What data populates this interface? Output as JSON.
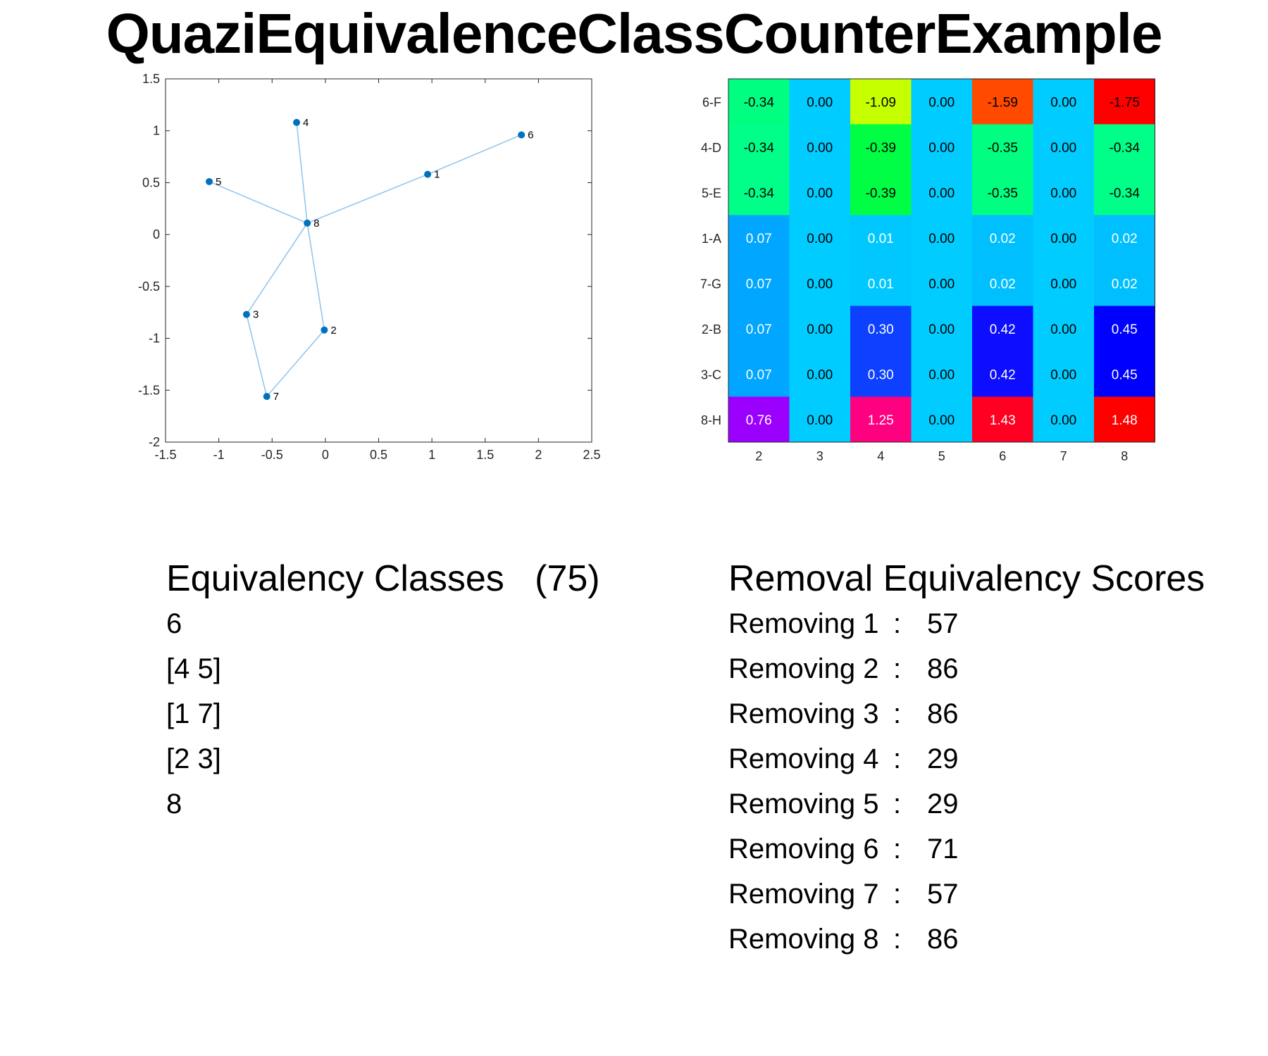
{
  "title": "QuaziEquivalenceClassCounterExample",
  "chart_data": [
    {
      "type": "scatter",
      "title": "",
      "xlabel": "",
      "ylabel": "",
      "xlim": [
        -1.5,
        2.5
      ],
      "ylim": [
        -2,
        1.5
      ],
      "xticks": [
        "-1.5",
        "-1",
        "-0.5",
        "0",
        "0.5",
        "1",
        "1.5",
        "2",
        "2.5"
      ],
      "xtick_values": [
        -1.5,
        -1,
        -0.5,
        0,
        0.5,
        1,
        1.5,
        2,
        2.5
      ],
      "yticks": [
        "1.5",
        "1",
        "0.5",
        "0",
        "-0.5",
        "-1",
        "-1.5",
        "-2"
      ],
      "ytick_values": [
        1.5,
        1,
        0.5,
        0,
        -0.5,
        -1,
        -1.5,
        -2
      ],
      "grid": false,
      "point_color": "#0072bd",
      "edge_color": "#8fc3ea",
      "points": [
        {
          "label": "1",
          "x": 0.96,
          "y": 0.58
        },
        {
          "label": "2",
          "x": -0.01,
          "y": -0.92
        },
        {
          "label": "3",
          "x": -0.74,
          "y": -0.77
        },
        {
          "label": "4",
          "x": -0.27,
          "y": 1.08
        },
        {
          "label": "5",
          "x": -1.09,
          "y": 0.51
        },
        {
          "label": "6",
          "x": 1.84,
          "y": 0.96
        },
        {
          "label": "7",
          "x": -0.55,
          "y": -1.56
        },
        {
          "label": "8",
          "x": -0.17,
          "y": 0.11
        }
      ],
      "edges": [
        [
          "1",
          "6"
        ],
        [
          "1",
          "8"
        ],
        [
          "4",
          "8"
        ],
        [
          "5",
          "8"
        ],
        [
          "8",
          "2"
        ],
        [
          "8",
          "3"
        ],
        [
          "3",
          "7"
        ],
        [
          "7",
          "2"
        ]
      ]
    },
    {
      "type": "heatmap",
      "title": "",
      "xlabel": "",
      "ylabel": "",
      "x_labels": [
        "2",
        "3",
        "4",
        "5",
        "6",
        "7",
        "8"
      ],
      "y_labels": [
        "6-F",
        "4-D",
        "5-E",
        "1-A",
        "7-G",
        "2-B",
        "3-C",
        "8-H"
      ],
      "values": [
        [
          "-0.34",
          "0.00",
          "-1.09",
          "0.00",
          "-1.59",
          "0.00",
          "-1.75"
        ],
        [
          "-0.34",
          "0.00",
          "-0.39",
          "0.00",
          "-0.35",
          "0.00",
          "-0.34"
        ],
        [
          "-0.34",
          "0.00",
          "-0.39",
          "0.00",
          "-0.35",
          "0.00",
          "-0.34"
        ],
        [
          "0.07",
          "0.00",
          "0.01",
          "0.00",
          "0.02",
          "0.00",
          "0.02"
        ],
        [
          "0.07",
          "0.00",
          "0.01",
          "0.00",
          "0.02",
          "0.00",
          "0.02"
        ],
        [
          "0.07",
          "0.00",
          "0.30",
          "0.00",
          "0.42",
          "0.00",
          "0.45"
        ],
        [
          "0.07",
          "0.00",
          "0.30",
          "0.00",
          "0.42",
          "0.00",
          "0.45"
        ],
        [
          "0.76",
          "0.00",
          "1.25",
          "0.00",
          "1.43",
          "0.00",
          "1.48"
        ]
      ],
      "colors": [
        [
          "#00ff80",
          "#00ccff",
          "#c6ff00",
          "#00ccff",
          "#ff4a00",
          "#00ccff",
          "#ff0000"
        ],
        [
          "#00ff88",
          "#00ccff",
          "#00ff44",
          "#00ccff",
          "#00ff80",
          "#00ccff",
          "#00ff88"
        ],
        [
          "#00ff88",
          "#00ccff",
          "#00ff44",
          "#00ccff",
          "#00ff80",
          "#00ccff",
          "#00ff88"
        ],
        [
          "#00a6ff",
          "#00ccff",
          "#00c8ff",
          "#00ccff",
          "#00bfff",
          "#00ccff",
          "#00bfff"
        ],
        [
          "#00a6ff",
          "#00ccff",
          "#00c8ff",
          "#00ccff",
          "#00bfff",
          "#00ccff",
          "#00bfff"
        ],
        [
          "#00a6ff",
          "#00ccff",
          "#0d40ff",
          "#00ccff",
          "#0d0dff",
          "#00ccff",
          "#0000ff"
        ],
        [
          "#00a6ff",
          "#00ccff",
          "#0d40ff",
          "#00ccff",
          "#0d0dff",
          "#00ccff",
          "#0000ff"
        ],
        [
          "#9b00ff",
          "#00ccff",
          "#ff0080",
          "#00ccff",
          "#ff0022",
          "#00ccff",
          "#ff0000"
        ]
      ],
      "text_colors": [
        [
          "#000000",
          "#000000",
          "#000000",
          "#000000",
          "#000000",
          "#000000",
          "#000000"
        ],
        [
          "#000000",
          "#000000",
          "#000000",
          "#000000",
          "#000000",
          "#000000",
          "#000000"
        ],
        [
          "#000000",
          "#000000",
          "#000000",
          "#000000",
          "#000000",
          "#000000",
          "#000000"
        ],
        [
          "#ffffff",
          "#000000",
          "#ffffff",
          "#000000",
          "#ffffff",
          "#000000",
          "#ffffff"
        ],
        [
          "#ffffff",
          "#000000",
          "#ffffff",
          "#000000",
          "#ffffff",
          "#000000",
          "#ffffff"
        ],
        [
          "#ffffff",
          "#000000",
          "#ffffff",
          "#000000",
          "#ffffff",
          "#000000",
          "#ffffff"
        ],
        [
          "#ffffff",
          "#000000",
          "#ffffff",
          "#000000",
          "#ffffff",
          "#000000",
          "#ffffff"
        ],
        [
          "#ffffff",
          "#000000",
          "#ffffff",
          "#000000",
          "#ffffff",
          "#000000",
          "#ffffff"
        ]
      ]
    }
  ],
  "equivalency": {
    "heading": "Equivalency Classes   (75)",
    "items": [
      "6",
      "[4 5]",
      "[1 7]",
      "[2 3]",
      "8"
    ]
  },
  "removal": {
    "heading": "Removal Equivalency Scores",
    "items": [
      {
        "label": "Removing 1",
        "sep": ":",
        "score": "57"
      },
      {
        "label": "Removing 2",
        "sep": ":",
        "score": "86"
      },
      {
        "label": "Removing 3",
        "sep": ":",
        "score": "86"
      },
      {
        "label": "Removing 4",
        "sep": ":",
        "score": "29"
      },
      {
        "label": "Removing 5",
        "sep": ":",
        "score": "29"
      },
      {
        "label": "Removing 6",
        "sep": ":",
        "score": "71"
      },
      {
        "label": "Removing 7",
        "sep": ":",
        "score": "57"
      },
      {
        "label": "Removing 8",
        "sep": ":",
        "score": "86"
      }
    ]
  }
}
